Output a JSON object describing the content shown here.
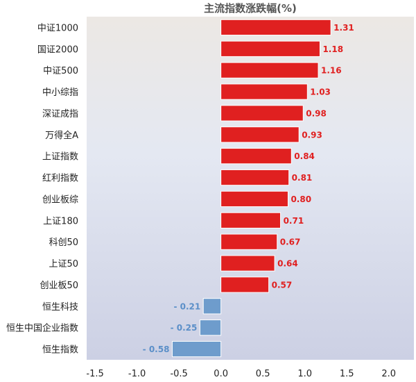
{
  "chart_data": {
    "type": "bar",
    "orientation": "horizontal",
    "title": "主流指数涨跌幅(%)",
    "xlabel": "",
    "ylabel": "",
    "categories": [
      "中证1000",
      "国证2000",
      "中证500",
      "中小综指",
      "深证成指",
      "万得全A",
      "上证指数",
      "红利指数",
      "创业板综",
      "上证180",
      "科创50",
      "上证50",
      "创业板50",
      "恒生科技",
      "恒生中国企业指数",
      "恒生指数"
    ],
    "values": [
      1.31,
      1.18,
      1.16,
      1.03,
      0.98,
      0.93,
      0.84,
      0.81,
      0.8,
      0.71,
      0.67,
      0.64,
      0.57,
      -0.21,
      -0.25,
      -0.58
    ],
    "value_labels": [
      "1.31",
      "1.18",
      "1.16",
      "1.03",
      "0.98",
      "0.93",
      "0.84",
      "0.81",
      "0.80",
      "0.71",
      "0.67",
      "0.64",
      "0.57",
      "- 0.21",
      "- 0.25",
      "- 0.58"
    ],
    "xlim": [
      -1.6,
      2.3
    ],
    "xticks": [
      -1.5,
      -1.0,
      -0.5,
      0.0,
      0.5,
      1.0,
      1.5,
      2.0
    ],
    "xtick_labels": [
      "-1.5",
      "-1.0",
      "-0.5",
      "0.0",
      "0.5",
      "1.0",
      "1.5",
      "2.0"
    ],
    "positive_color": "#e02020",
    "negative_color": "#6e9ccc",
    "grid": false,
    "legend": "none"
  }
}
